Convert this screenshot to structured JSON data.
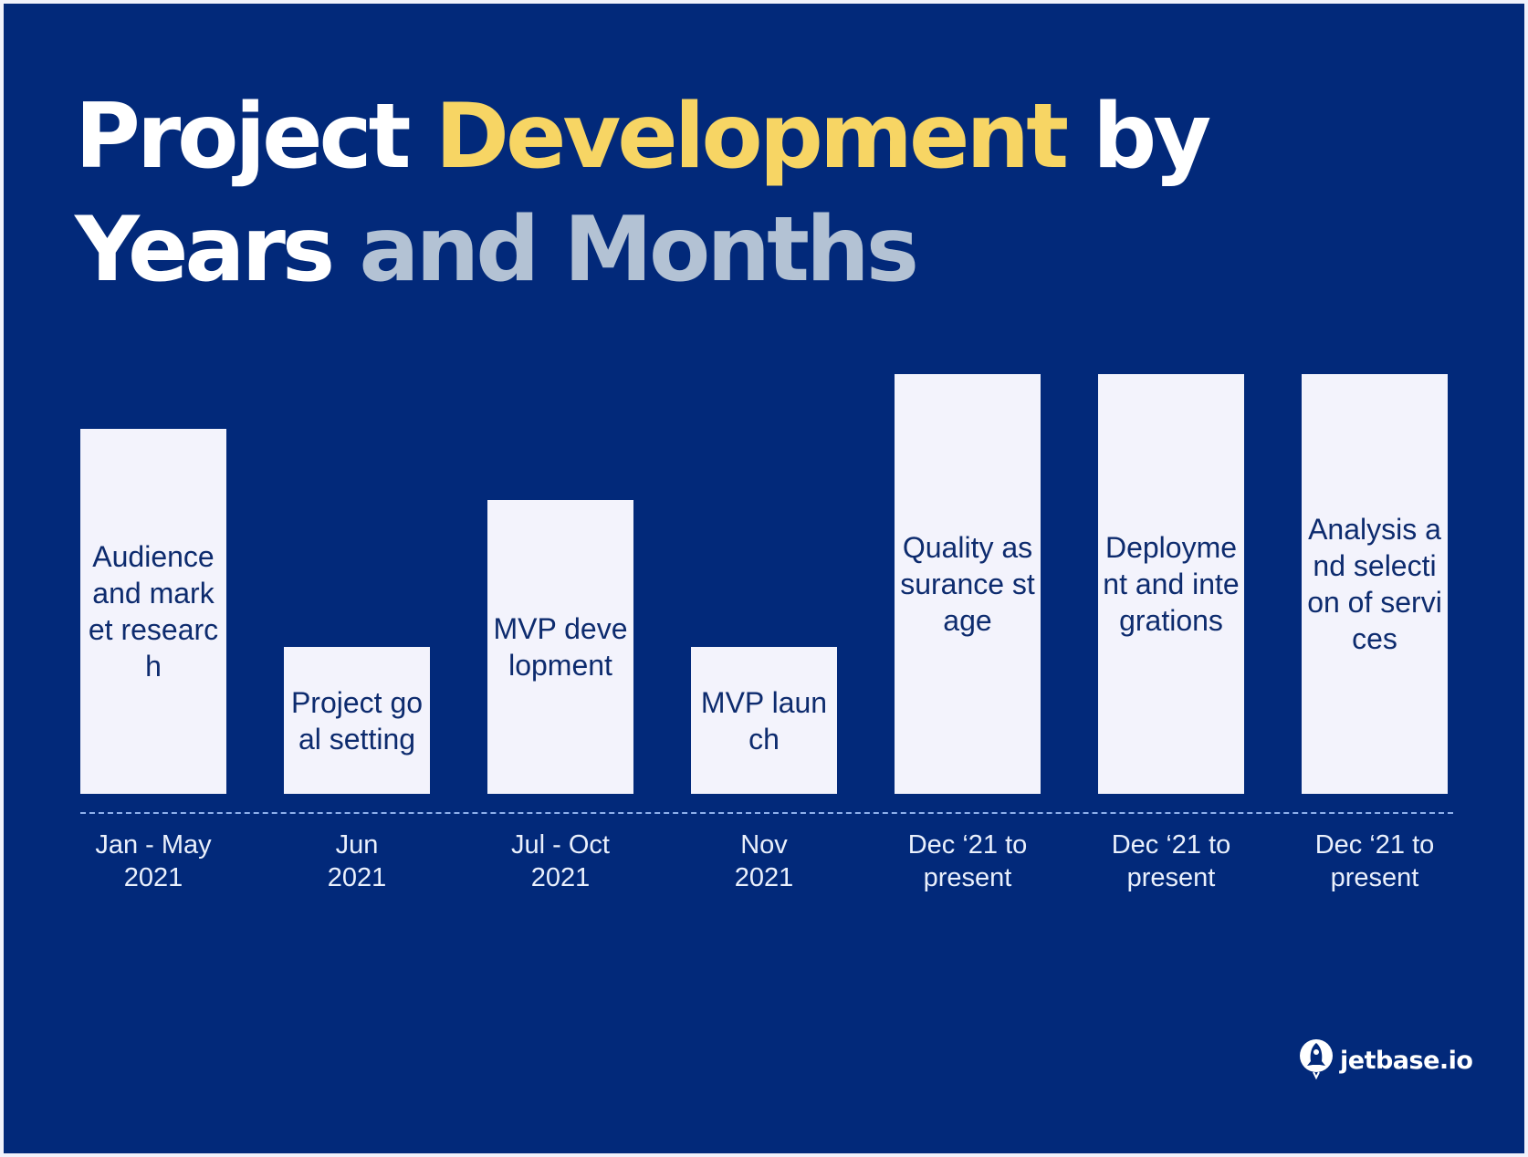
{
  "colors": {
    "background": "#02297a",
    "bar": "#f3f3fc",
    "bar_text": "#0d2b6e",
    "title_white": "#ffffff",
    "title_yellow": "#f7d564",
    "title_grey": "#b3c2d4",
    "axis_dash": "#8eb0ec"
  },
  "title": {
    "part1": "Project ",
    "part2": "Development",
    "part3": " by",
    "part4": "Years ",
    "part5": "and Months"
  },
  "brand": {
    "icon": "rocket-icon",
    "name": "jetbase.io"
  },
  "chart_data": {
    "type": "bar",
    "title": "Project Development by Years and Months",
    "xlabel": "",
    "ylabel": "",
    "grid": false,
    "y_axis_visible": false,
    "value_note": "Bar heights are relative (no numeric axis shown); values are fraction of tallest bar",
    "ylim": [
      0,
      1
    ],
    "categories": [
      "Jan - May 2021",
      "Jun 2021",
      "Jul - Oct 2021",
      "Nov 2021",
      "Dec ‘21 to present",
      "Dec ‘21 to present",
      "Dec ‘21 to present"
    ],
    "bars": [
      {
        "label": "Audience and market research",
        "date_line1": "Jan - May",
        "date_line2": "2021",
        "value": 0.87
      },
      {
        "label": "Project goal setting",
        "date_line1": "Jun",
        "date_line2": "2021",
        "value": 0.35
      },
      {
        "label": "MVP development",
        "date_line1": "Jul - Oct",
        "date_line2": "2021",
        "value": 0.7
      },
      {
        "label": "MVP launch",
        "date_line1": "Nov",
        "date_line2": "2021",
        "value": 0.35
      },
      {
        "label": "Quality assurance stage",
        "date_line1": "Dec ‘21 to",
        "date_line2": "present",
        "value": 1.0
      },
      {
        "label": "Deployment and integrations",
        "date_line1": "Dec ‘21 to",
        "date_line2": "present",
        "value": 1.0
      },
      {
        "label": "Analysis and selection of services",
        "date_line1": "Dec ‘21 to",
        "date_line2": "present",
        "value": 1.0
      }
    ]
  }
}
